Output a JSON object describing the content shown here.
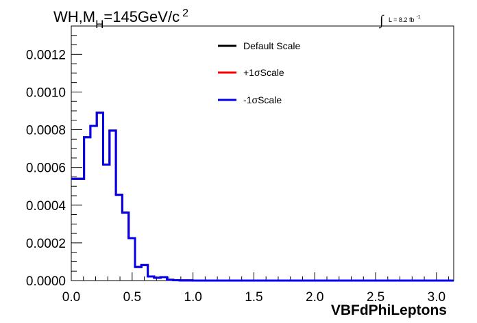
{
  "chart_data": {
    "type": "line",
    "title": {
      "main": "WH,M",
      "subscript": "H",
      "rest": "=145GeV/c",
      "superscript": "2"
    },
    "luminosity": {
      "symbol": "∫",
      "text": "L = 8.2 fb",
      "superscript": "-1"
    },
    "xlabel": "VBFdPhiLeptons",
    "ylabel": "",
    "xlim": [
      0,
      3.1416
    ],
    "ylim": [
      0,
      0.00135
    ],
    "x_ticks": [
      "0.0",
      "0.5",
      "1.0",
      "1.5",
      "2.0",
      "2.5",
      "3.0"
    ],
    "x_tick_values": [
      0.0,
      0.5,
      1.0,
      1.5,
      2.0,
      2.5,
      3.0
    ],
    "y_ticks": [
      "0.0000",
      "0.0002",
      "0.0004",
      "0.0006",
      "0.0008",
      "0.0010",
      "0.0012"
    ],
    "y_tick_values": [
      0.0,
      0.0002,
      0.0004,
      0.0006,
      0.0008,
      0.001,
      0.0012
    ],
    "bin_edges": [
      0,
      0.1047,
      0.1571,
      0.2094,
      0.2618,
      0.3142,
      0.3665,
      0.4189,
      0.4712,
      0.5236,
      0.576,
      0.6283,
      0.6807,
      0.733,
      0.7854,
      0.8378,
      0.8901,
      0.9425,
      0.9948,
      1.0472,
      3.1416
    ],
    "legend_position": "top-center",
    "series": [
      {
        "name": "Default Scale",
        "color": "#000000",
        "values": [
          0.00054,
          0.00076,
          0.00082,
          0.00089,
          0.000615,
          0.000795,
          0.000455,
          0.00036,
          0.000225,
          7.2e-05,
          8.2e-05,
          2.2e-05,
          1.5e-05,
          1.8e-05,
          4e-06,
          2e-06,
          1e-06,
          1e-06,
          0.0,
          0.0
        ]
      },
      {
        "name": "+1σScale",
        "color": "#ff0000",
        "values": [
          0.00054,
          0.00076,
          0.00082,
          0.00089,
          0.000615,
          0.000795,
          0.000455,
          0.00036,
          0.000225,
          7.2e-05,
          8.2e-05,
          2.2e-05,
          1.5e-05,
          1.8e-05,
          4e-06,
          2e-06,
          1e-06,
          1e-06,
          0.0,
          0.0
        ]
      },
      {
        "name": "-1σScale",
        "color": "#0000ee",
        "values": [
          0.00054,
          0.00076,
          0.00082,
          0.00089,
          0.000615,
          0.000795,
          0.000455,
          0.00036,
          0.000225,
          7.2e-05,
          8.2e-05,
          2.2e-05,
          1.5e-05,
          1.8e-05,
          4e-06,
          2e-06,
          1e-06,
          1e-06,
          0.0,
          0.0
        ]
      }
    ]
  }
}
